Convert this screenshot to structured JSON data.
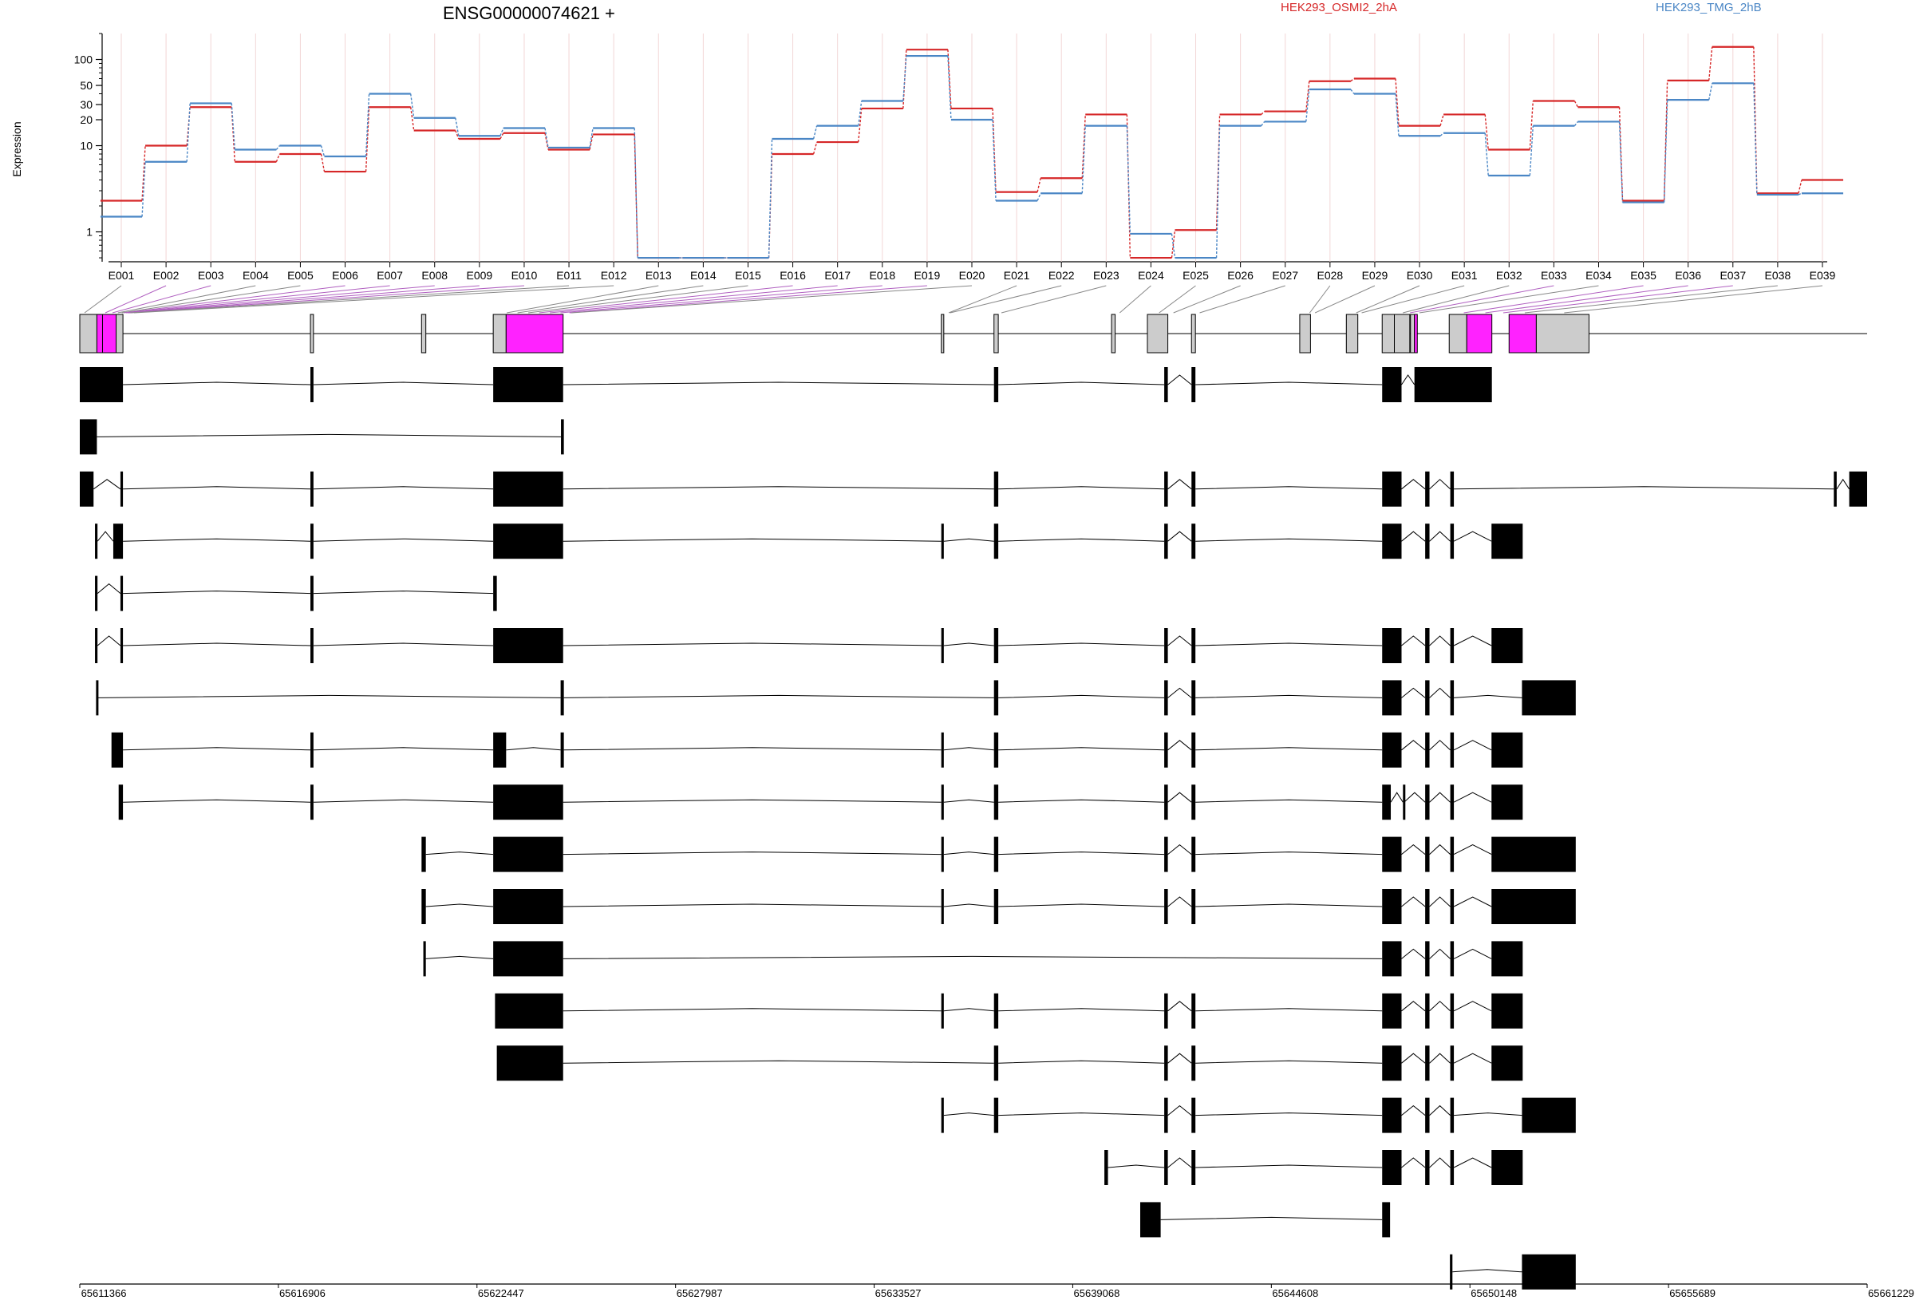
{
  "chart_data": {
    "type": "line",
    "title": "ENSG00000074621 +",
    "ylabel": "Expression",
    "xlabel": "",
    "yscale": "log",
    "ylim": [
      0.45,
      200
    ],
    "y_ticks": [
      1,
      10,
      20,
      30,
      50,
      100
    ],
    "x_ticks": [
      "E001",
      "E002",
      "E003",
      "E004",
      "E005",
      "E006",
      "E007",
      "E008",
      "E009",
      "E010",
      "E011",
      "E012",
      "E013",
      "E014",
      "E015",
      "E016",
      "E017",
      "E018",
      "E019",
      "E020",
      "E021",
      "E022",
      "E023",
      "E024",
      "E025",
      "E026",
      "E027",
      "E028",
      "E029",
      "E030",
      "E031",
      "E032",
      "E033",
      "E034",
      "E035",
      "E036",
      "E037",
      "E038",
      "E039"
    ],
    "legend_position": "top",
    "series": [
      {
        "name": "HEK293_OSMI2_2hA",
        "color": "#d62728",
        "values": [
          2.3,
          10,
          28,
          6.5,
          8,
          5,
          28,
          15,
          12,
          14,
          9,
          13.5,
          0.5,
          0.5,
          0.5,
          8,
          11,
          27,
          130,
          27,
          2.9,
          4.2,
          23,
          0.5,
          1.05,
          23,
          25,
          56,
          60,
          17,
          23,
          9,
          33,
          28,
          2.3,
          57,
          140,
          2.8,
          4
        ]
      },
      {
        "name": "HEK293_TMG_2hB",
        "color": "#4a86c5",
        "values": [
          1.5,
          6.5,
          31,
          9,
          10,
          7.5,
          40,
          21,
          13,
          16,
          9.5,
          16,
          0.5,
          0.5,
          0.5,
          12,
          17,
          33,
          110,
          20,
          2.3,
          2.8,
          17,
          0.95,
          0.5,
          17,
          19,
          45,
          40,
          13,
          14,
          4.5,
          17,
          19,
          2.2,
          34,
          53,
          2.7,
          2.8
        ]
      }
    ],
    "genomic_axis": {
      "label_values": [
        "65611366",
        "65616906",
        "65622447",
        "65627987",
        "65633527",
        "65639068",
        "65644608",
        "65650148",
        "65655689",
        "65661229"
      ]
    },
    "highlighted_exons": [
      "E002",
      "E003",
      "E011",
      "E033",
      "E034",
      "E035"
    ],
    "colors": {
      "exon": "#000000",
      "collapsed_exon": "#cccccc",
      "highlight": "#ff22ff",
      "intron": "#000000",
      "grid": "#f2d6d6"
    }
  }
}
